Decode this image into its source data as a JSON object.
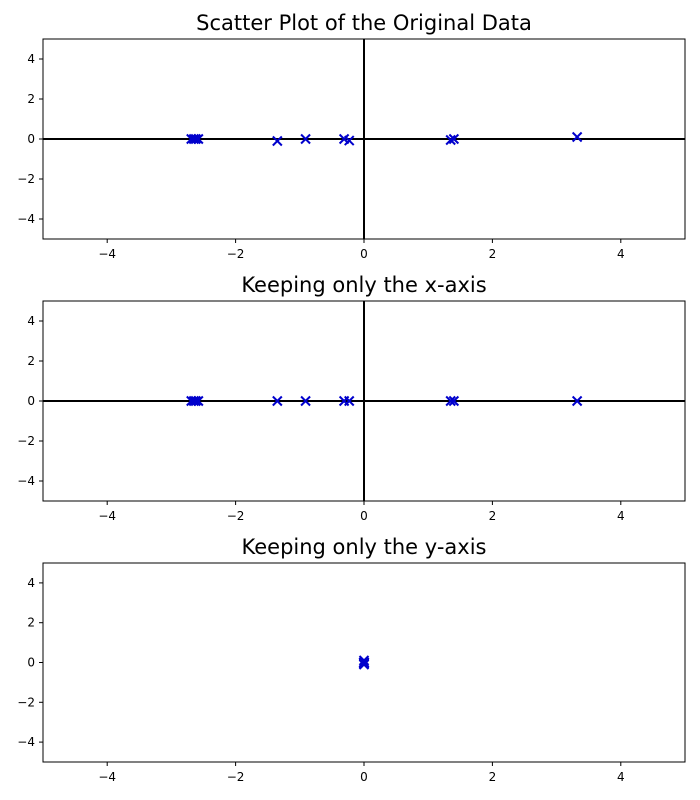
{
  "chart_data": [
    {
      "type": "scatter",
      "title": "Scatter Plot of the Original Data",
      "xlabel": "",
      "ylabel": "",
      "xlim": [
        -5,
        5
      ],
      "ylim": [
        -5,
        5
      ],
      "xticks": [
        -4,
        -2,
        0,
        2,
        4
      ],
      "yticks": [
        -4,
        -2,
        0,
        2,
        4
      ],
      "xtick_labels": [
        "−4",
        "−2",
        "0",
        "2",
        "4"
      ],
      "ytick_labels": [
        "−4",
        "−2",
        "0",
        "2",
        "4"
      ],
      "zero_lines": {
        "horizontal": true,
        "vertical": true
      },
      "grid": false,
      "marker": "x",
      "color": "#0000cc",
      "series": [
        {
          "x": [
            -2.69,
            -2.65,
            -2.62,
            -2.58,
            -1.35,
            -0.91,
            -0.31,
            -0.23,
            1.35,
            1.4,
            3.32
          ],
          "y": [
            0.0,
            0.0,
            0.0,
            0.0,
            -0.1,
            0.0,
            0.0,
            -0.08,
            -0.05,
            0.0,
            0.1
          ]
        }
      ]
    },
    {
      "type": "scatter",
      "title": "Keeping only the x-axis",
      "xlabel": "",
      "ylabel": "",
      "xlim": [
        -5,
        5
      ],
      "ylim": [
        -5,
        5
      ],
      "xticks": [
        -4,
        -2,
        0,
        2,
        4
      ],
      "yticks": [
        -4,
        -2,
        0,
        2,
        4
      ],
      "xtick_labels": [
        "−4",
        "−2",
        "0",
        "2",
        "4"
      ],
      "ytick_labels": [
        "−4",
        "−2",
        "0",
        "2",
        "4"
      ],
      "zero_lines": {
        "horizontal": true,
        "vertical": true
      },
      "grid": false,
      "marker": "x",
      "color": "#0000cc",
      "series": [
        {
          "x": [
            -2.69,
            -2.65,
            -2.62,
            -2.58,
            -1.35,
            -0.91,
            -0.31,
            -0.23,
            1.35,
            1.4,
            3.32
          ],
          "y": [
            0,
            0,
            0,
            0,
            0,
            0,
            0,
            0,
            0,
            0,
            0
          ]
        }
      ]
    },
    {
      "type": "scatter",
      "title": "Keeping only the y-axis",
      "xlabel": "",
      "ylabel": "",
      "xlim": [
        -5,
        5
      ],
      "ylim": [
        -5,
        5
      ],
      "xticks": [
        -4,
        -2,
        0,
        2,
        4
      ],
      "yticks": [
        -4,
        -2,
        0,
        2,
        4
      ],
      "xtick_labels": [
        "−4",
        "−2",
        "0",
        "2",
        "4"
      ],
      "ytick_labels": [
        "−4",
        "−2",
        "0",
        "2",
        "4"
      ],
      "zero_lines": {
        "horizontal": false,
        "vertical": false
      },
      "grid": false,
      "marker": "x",
      "color": "#0000cc",
      "series": [
        {
          "x": [
            0,
            0,
            0,
            0,
            0,
            0,
            0,
            0,
            0,
            0,
            0
          ],
          "y": [
            0.0,
            0.0,
            0.0,
            0.0,
            -0.1,
            0.0,
            0.0,
            -0.08,
            -0.05,
            0.0,
            0.1
          ]
        }
      ]
    }
  ]
}
